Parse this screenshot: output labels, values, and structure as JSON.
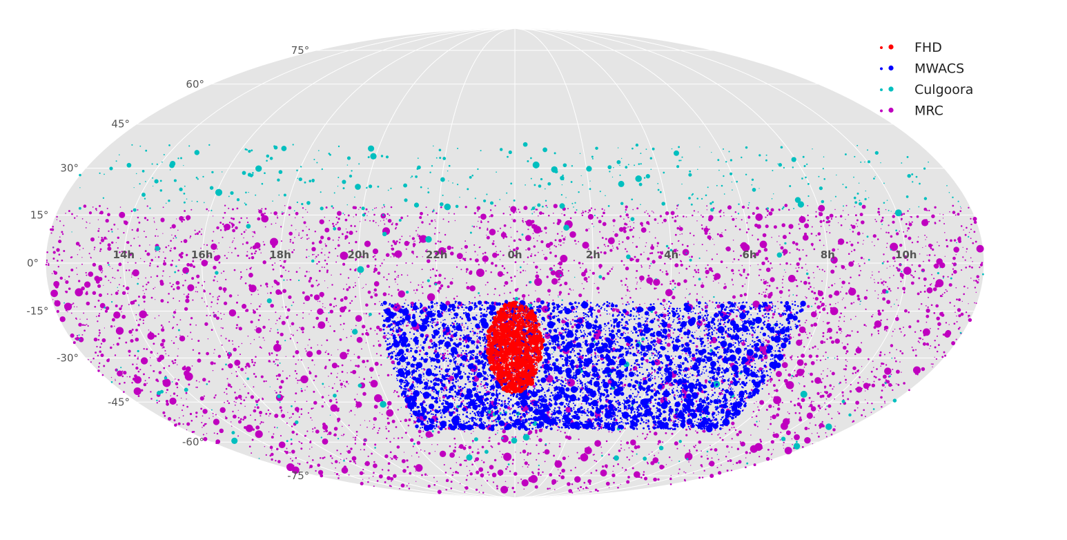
{
  "chart_data": {
    "type": "scatter",
    "projection": "mollweide",
    "title": "",
    "xlabel": "",
    "ylabel": "",
    "background_color": "#e5e5e5",
    "grid": true,
    "legend_placement": "top-right",
    "ra_tick_labels": [
      "14h",
      "16h",
      "18h",
      "20h",
      "22h",
      "0h",
      "2h",
      "4h",
      "6h",
      "8h",
      "10h"
    ],
    "ra_tick_values_hours": [
      14,
      16,
      18,
      20,
      22,
      0,
      2,
      4,
      6,
      8,
      10
    ],
    "dec_tick_labels": [
      "75°",
      "60°",
      "45°",
      "30°",
      "15°",
      "0°",
      "-15°",
      "-30°",
      "-45°",
      "-60°",
      "-75°"
    ],
    "dec_tick_values_deg": [
      75,
      60,
      45,
      30,
      15,
      0,
      -15,
      -30,
      -45,
      -60,
      -75
    ],
    "series": [
      {
        "name": "FHD",
        "color": "#ff0000",
        "region": {
          "ra_center_hours": 0.0,
          "ra_half_width_hours": 0.75,
          "dec_center_deg": -27,
          "dec_half_height_deg": 15
        },
        "approx_points": 4500
      },
      {
        "name": "MWACS",
        "color": "#0000ff",
        "region": {
          "ra_min_hours": -3.5,
          "ra_max_hours": 7.5,
          "dec_min_deg": -55,
          "dec_max_deg": -12
        },
        "approx_points": 11000
      },
      {
        "name": "Culgoora",
        "color": "#00bfbf",
        "region": {
          "dec_min_deg": -70,
          "dec_max_deg": 38
        },
        "approx_points": 700
      },
      {
        "name": "MRC",
        "color": "#bf00bf",
        "region": {
          "dec_min_deg": -85,
          "dec_max_deg": 18
        },
        "approx_points": 5000
      }
    ]
  }
}
